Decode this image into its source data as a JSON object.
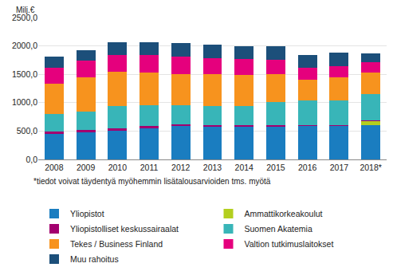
{
  "chart_data": {
    "type": "bar",
    "stacked": true,
    "y_label": "Milj.€",
    "annotations": [
      "*tiedot voivat täydentyä myöhemmin lisätalousarvioiden tms. myötä"
    ],
    "categories": [
      "2008",
      "2009",
      "2010",
      "2011",
      "2012",
      "2013",
      "2014",
      "2015",
      "2016",
      "2017",
      "2018*"
    ],
    "series": [
      {
        "name": "Yliopistot",
        "color": "#1a7dc0",
        "values": [
          455,
          480,
          505,
          545,
          585,
          575,
          570,
          570,
          590,
          590,
          600
        ]
      },
      {
        "name": "Ammattikorkeakoulut",
        "color": "#b3cf1f",
        "values": [
          0,
          0,
          0,
          0,
          0,
          0,
          0,
          0,
          0,
          0,
          80
        ]
      },
      {
        "name": "Yliopistolliset keskussairaalat",
        "color": "#a3006f",
        "values": [
          40,
          40,
          45,
          50,
          40,
          30,
          40,
          30,
          15,
          15,
          15
        ]
      },
      {
        "name": "Suomen Akatemia",
        "color": "#38b5b8",
        "values": [
          300,
          320,
          385,
          360,
          330,
          335,
          325,
          405,
          440,
          440,
          455
        ]
      },
      {
        "name": "Tekes / Business Finland",
        "color": "#f7931e",
        "values": [
          535,
          605,
          615,
          580,
          550,
          560,
          555,
          495,
          365,
          405,
          380
        ]
      },
      {
        "name": "Valtion tutkimuslaitokset",
        "color": "#e5007d",
        "values": [
          285,
          295,
          290,
          310,
          300,
          290,
          275,
          255,
          205,
          195,
          185
        ]
      },
      {
        "name": "Muu rahoitus",
        "color": "#1c4f7a",
        "values": [
          190,
          180,
          220,
          215,
          245,
          230,
          225,
          235,
          225,
          240,
          160
        ]
      }
    ],
    "ylim": [
      0,
      2500
    ],
    "yticks": [
      {
        "value": 0,
        "label": "0,0"
      },
      {
        "value": 500,
        "label": "500,0"
      },
      {
        "value": 1000,
        "label": "1000,0"
      },
      {
        "value": 1500,
        "label": "1500,0"
      },
      {
        "value": 2000,
        "label": "2000,0"
      },
      {
        "value": 2500,
        "label": "2500,0"
      }
    ],
    "grid": true,
    "legend": "bottom"
  }
}
